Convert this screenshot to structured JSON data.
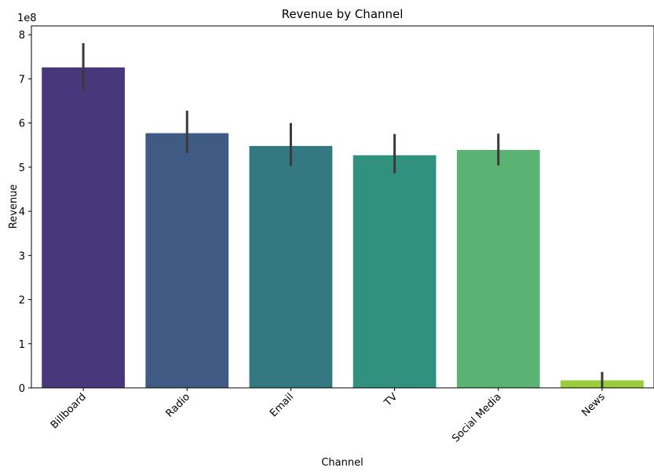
{
  "chart_data": {
    "type": "bar",
    "title": "Revenue by Channel",
    "xlabel": "Channel",
    "ylabel": "Revenue",
    "y_offset_label": "1e8",
    "categories": [
      "Billboard",
      "Radio",
      "Email",
      "TV",
      "Social Media",
      "News"
    ],
    "values": [
      7.26,
      5.77,
      5.48,
      5.27,
      5.39,
      0.17
    ],
    "error_low": [
      6.75,
      5.32,
      5.03,
      4.86,
      5.04,
      0.0
    ],
    "error_high": [
      7.81,
      6.28,
      6.0,
      5.75,
      5.76,
      0.36
    ],
    "value_scale": 100000000,
    "ylim": [
      0,
      8.2
    ],
    "yticks": [
      0,
      1,
      2,
      3,
      4,
      5,
      6,
      7,
      8
    ],
    "ytick_labels": [
      "0",
      "1",
      "2",
      "3",
      "4",
      "5",
      "6",
      "7",
      "8"
    ],
    "grid": false,
    "legend": "none",
    "colors": [
      "#48377a",
      "#3f5b84",
      "#347882",
      "#30927e",
      "#5ab373",
      "#9acd3c"
    ],
    "error_bar_color": "#3a3a3a"
  }
}
